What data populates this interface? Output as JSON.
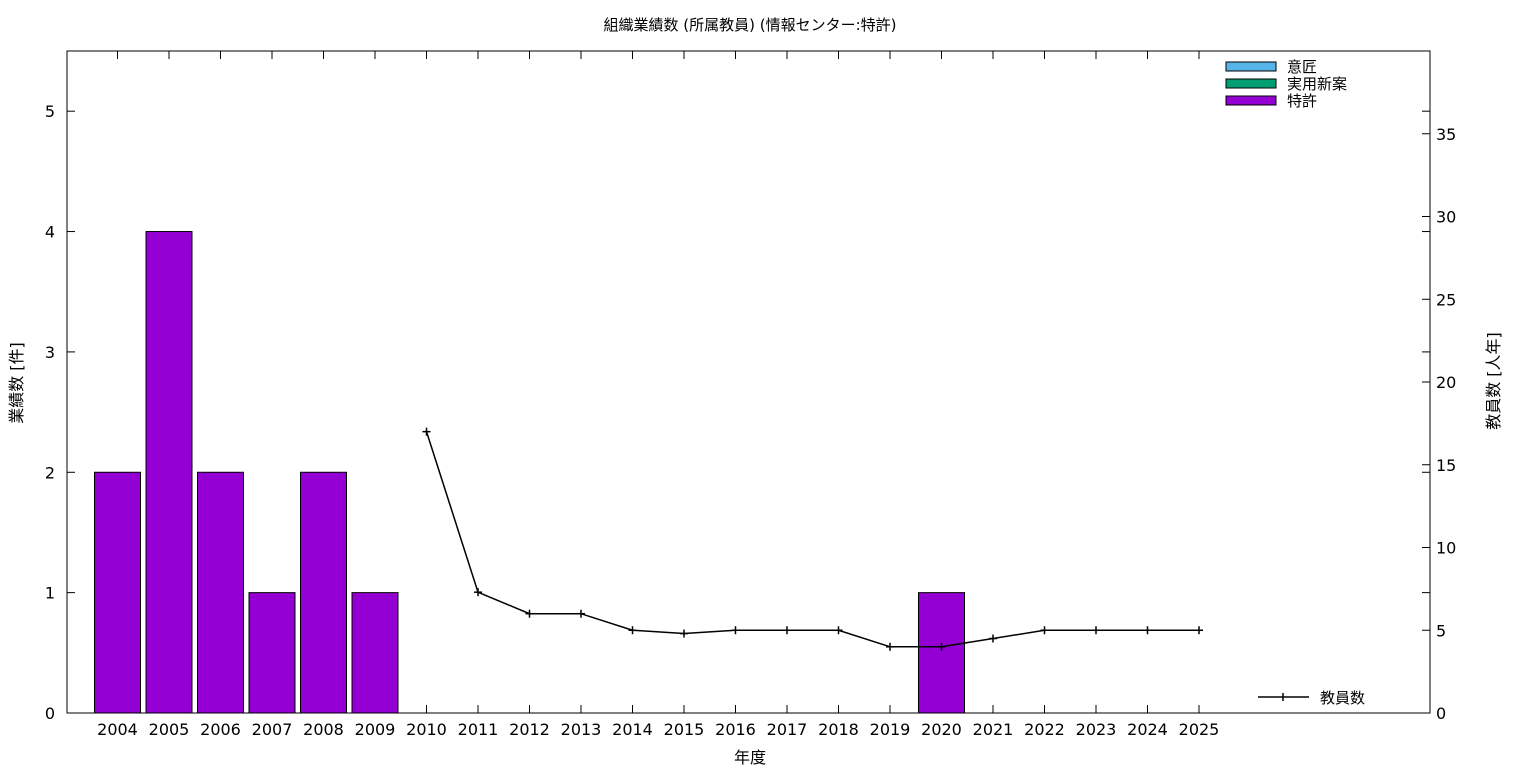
{
  "chart_data": {
    "type": "bar",
    "title": "組織業績数 (所属教員) (情報センター:特許)",
    "xlabel": "年度",
    "ylabel": "業績数 [件]",
    "y2label": "教員数 [人年]",
    "categories": [
      "2004",
      "2005",
      "2006",
      "2007",
      "2008",
      "2009",
      "2010",
      "2011",
      "2012",
      "2013",
      "2014",
      "2015",
      "2016",
      "2017",
      "2018",
      "2019",
      "2020",
      "2021",
      "2022",
      "2023",
      "2024",
      "2025"
    ],
    "ylim": [
      0,
      5.5
    ],
    "y2lim": [
      0,
      40
    ],
    "yticks": [
      0,
      1,
      2,
      3,
      4,
      5
    ],
    "y2ticks": [
      0,
      5,
      10,
      15,
      20,
      25,
      30,
      35
    ],
    "grid": false,
    "legend_position": "top-right",
    "series": [
      {
        "name": "意匠",
        "kind": "bar",
        "color": "#56b4e9",
        "values": [
          0,
          0,
          0,
          0,
          0,
          0,
          0,
          0,
          0,
          0,
          0,
          0,
          0,
          0,
          0,
          0,
          0,
          0,
          0,
          0,
          0,
          0
        ]
      },
      {
        "name": "実用新案",
        "kind": "bar",
        "color": "#009e73",
        "values": [
          0,
          0,
          0,
          0,
          0,
          0,
          0,
          0,
          0,
          0,
          0,
          0,
          0,
          0,
          0,
          0,
          0,
          0,
          0,
          0,
          0,
          0
        ]
      },
      {
        "name": "特許",
        "kind": "bar",
        "color": "#9400d3",
        "values": [
          2,
          4,
          2,
          1,
          2,
          1,
          0,
          0,
          0,
          0,
          0,
          0,
          0,
          0,
          0,
          0,
          1,
          0,
          0,
          0,
          0,
          0
        ]
      },
      {
        "name": "教員数",
        "kind": "line",
        "axis": "right",
        "color": "#000000",
        "values": [
          null,
          null,
          null,
          null,
          null,
          null,
          17,
          7.3,
          6,
          6,
          5,
          4.8,
          5,
          5,
          5,
          4,
          4,
          4.5,
          5,
          5,
          5,
          5
        ]
      }
    ]
  }
}
